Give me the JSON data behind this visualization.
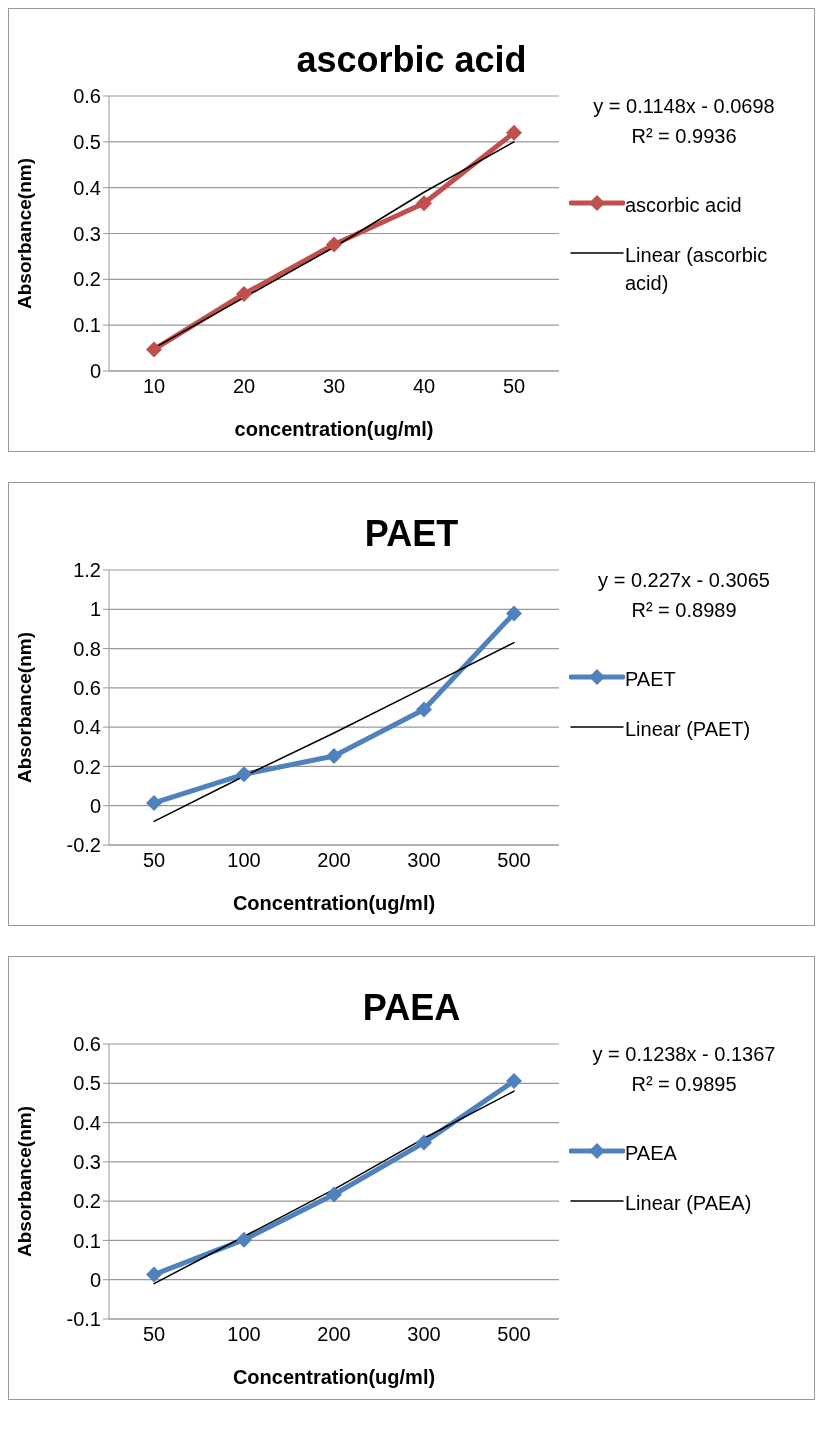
{
  "chart_data": [
    {
      "type": "line",
      "title": "ascorbic acid",
      "xlabel": "concentration(ug/ml)",
      "ylabel": "Absorbance(nm)",
      "categories": [
        "10",
        "20",
        "30",
        "40",
        "50"
      ],
      "ylim": [
        0,
        0.6
      ],
      "yticks": [
        0,
        0.1,
        0.2,
        0.3,
        0.4,
        0.5,
        0.6
      ],
      "grid": "y",
      "legend": "right",
      "annotations": [
        "y = 0.1148x - 0.0698",
        "R² = 0.9936"
      ],
      "series": [
        {
          "name": "ascorbic acid",
          "color": "#c0504d",
          "marker": "diamond",
          "values": [
            0.047,
            0.168,
            0.276,
            0.366,
            0.52
          ]
        },
        {
          "name": "Linear (ascorbic acid)",
          "color": "#000000",
          "marker": "none",
          "values": [
            0.05,
            0.16,
            0.27,
            0.39,
            0.5
          ]
        }
      ]
    },
    {
      "type": "line",
      "title": "PAET",
      "xlabel": "Concentration(ug/ml)",
      "ylabel": "Absorbance(nm)",
      "categories": [
        "50",
        "100",
        "200",
        "300",
        "500"
      ],
      "ylim": [
        -0.2,
        1.2
      ],
      "yticks": [
        -0.2,
        0,
        0.2,
        0.4,
        0.6,
        0.8,
        1,
        1.2
      ],
      "grid": "y",
      "legend": "right",
      "annotations": [
        "y = 0.227x - 0.3065",
        "R² = 0.8989"
      ],
      "series": [
        {
          "name": "PAET",
          "color": "#4f81bd",
          "marker": "diamond",
          "values": [
            0.014,
            0.16,
            0.253,
            0.49,
            0.979
          ]
        },
        {
          "name": "Linear (PAET)",
          "color": "#000000",
          "marker": "none",
          "values": [
            -0.08,
            0.15,
            0.37,
            0.6,
            0.83
          ]
        }
      ]
    },
    {
      "type": "line",
      "title": "PAEA",
      "xlabel": "Concentration(ug/ml)",
      "ylabel": "Absorbance(nm)",
      "categories": [
        "50",
        "100",
        "200",
        "300",
        "500"
      ],
      "ylim": [
        -0.1,
        0.6
      ],
      "yticks": [
        -0.1,
        0,
        0.1,
        0.2,
        0.3,
        0.4,
        0.5,
        0.6
      ],
      "grid": "y",
      "legend": "right",
      "annotations": [
        "y = 0.1238x - 0.1367",
        "R² = 0.9895"
      ],
      "series": [
        {
          "name": "PAEA",
          "color": "#4f81bd",
          "marker": "diamond",
          "values": [
            0.013,
            0.102,
            0.217,
            0.349,
            0.506
          ]
        },
        {
          "name": "Linear (PAEA)",
          "color": "#000000",
          "marker": "none",
          "values": [
            -0.01,
            0.11,
            0.23,
            0.36,
            0.48
          ]
        }
      ]
    }
  ]
}
